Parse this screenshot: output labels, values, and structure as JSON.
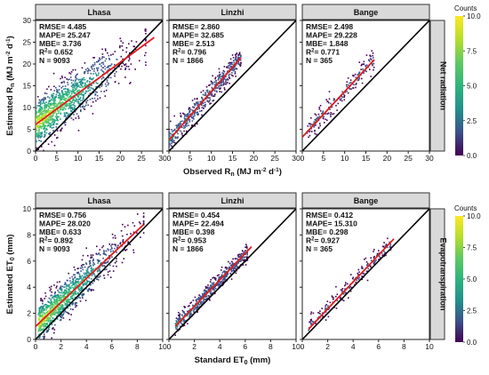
{
  "chart_data": [
    {
      "type": "scatter",
      "variable": "Net radiation",
      "xlabel_base": "Observed R",
      "xlabel_sub": "n",
      "xlabel_units": "(MJ m",
      "xlabel_exp1": "-2",
      "xlabel_mid": " d",
      "xlabel_exp2": "-1",
      "xlabel_end": ")",
      "ylabel_base": "Estimated R",
      "ylabel_sub": "n",
      "ylabel_units": "(MJ m",
      "ylabel_exp1": "-2",
      "ylabel_mid": " d",
      "ylabel_exp2": "-1",
      "ylabel_end": ")",
      "xlim": [
        0,
        30
      ],
      "ylim": [
        0,
        30
      ],
      "xticks": [
        0,
        5,
        10,
        15,
        20,
        25,
        30
      ],
      "yticks": [
        0,
        5,
        10,
        15,
        20,
        25,
        30
      ],
      "panels": [
        {
          "site": "Lhasa",
          "stats": {
            "RMSE": "4.485",
            "MAPE": "25.247",
            "MBE": "3.736",
            "R2": "0.652",
            "N": "9093"
          },
          "fit": [
            [
              0,
              6.1
            ],
            [
              28,
              26.1
            ]
          ],
          "cloud": {
            "x_range": [
              0,
              26
            ],
            "y_center_slope": 0.72,
            "y_center_intercept": 6.2,
            "spread": 2.6,
            "density": "high"
          }
        },
        {
          "site": "Linzhi",
          "stats": {
            "RMSE": "2.860",
            "MAPE": "32.685",
            "MBE": "2.513",
            "R2": "0.796",
            "N": "1866"
          },
          "fit": [
            [
              0,
              2.5
            ],
            [
              17,
              21.5
            ]
          ],
          "cloud": {
            "x_range": [
              0,
              17
            ],
            "y_center_slope": 1.12,
            "y_center_intercept": 2.5,
            "spread": 1.2,
            "density": "medium"
          }
        },
        {
          "site": "Bange",
          "stats": {
            "RMSE": "2.498",
            "MAPE": "29.228",
            "MBE": "1.848",
            "R2": "0.771",
            "N": "365"
          },
          "fit": [
            [
              0,
              3.2
            ],
            [
              17,
              21.0
            ]
          ],
          "cloud": {
            "x_range": [
              1,
              17
            ],
            "y_center_slope": 1.05,
            "y_center_intercept": 3.2,
            "spread": 1.3,
            "density": "low"
          }
        }
      ]
    },
    {
      "type": "scatter",
      "variable": "Evapotranspiration",
      "xlabel_base": "Standard ET",
      "xlabel_sub": "0",
      "xlabel_units": "(mm)",
      "ylabel_base": "Estimated ET",
      "ylabel_sub": "0",
      "ylabel_units": "(mm)",
      "xlim": [
        0,
        10
      ],
      "ylim": [
        0,
        10
      ],
      "xticks": [
        0,
        2,
        4,
        6,
        8,
        10
      ],
      "yticks": [
        0,
        2,
        4,
        6,
        8,
        10
      ],
      "panels": [
        {
          "site": "Lhasa",
          "stats": {
            "RMSE": "0.756",
            "MAPE": "28.020",
            "MBE": "0.633",
            "R2": "0.892",
            "N": "9093"
          },
          "fit": [
            [
              0,
              1.0
            ],
            [
              8.5,
              8.8
            ]
          ],
          "cloud": {
            "x_range": [
              0.2,
              8.5
            ],
            "y_center_slope": 0.92,
            "y_center_intercept": 1.0,
            "spread": 0.7,
            "density": "high"
          }
        },
        {
          "site": "Linzhi",
          "stats": {
            "RMSE": "0.454",
            "MAPE": "22.494",
            "MBE": "0.398",
            "R2": "0.953",
            "N": "1866"
          },
          "fit": [
            [
              0.5,
              1.0
            ],
            [
              6.5,
              7.1
            ]
          ],
          "cloud": {
            "x_range": [
              0.5,
              6.2
            ],
            "y_center_slope": 1.0,
            "y_center_intercept": 0.5,
            "spread": 0.3,
            "density": "medium"
          }
        },
        {
          "site": "Bange",
          "stats": {
            "RMSE": "0.412",
            "MAPE": "15.310",
            "MBE": "0.298",
            "R2": "0.927",
            "N": "365"
          },
          "fit": [
            [
              0.5,
              0.8
            ],
            [
              7.2,
              7.7
            ]
          ],
          "cloud": {
            "x_range": [
              0.5,
              7.0
            ],
            "y_center_slope": 1.0,
            "y_center_intercept": 0.4,
            "spread": 0.35,
            "density": "low"
          }
        }
      ]
    }
  ],
  "colorbar": {
    "title": "Counts",
    "ticks": [
      "10.0",
      "7.5",
      "5.0",
      "2.5",
      "0.0"
    ],
    "colors": [
      "#440154",
      "#3b528b",
      "#21918c",
      "#2fb47c",
      "#5ec962",
      "#b5de2b",
      "#fde725"
    ]
  },
  "colors": {
    "fit_line": "#e31a1c",
    "one_to_one": "#000000",
    "strip_fill": "#d9d9d9"
  }
}
